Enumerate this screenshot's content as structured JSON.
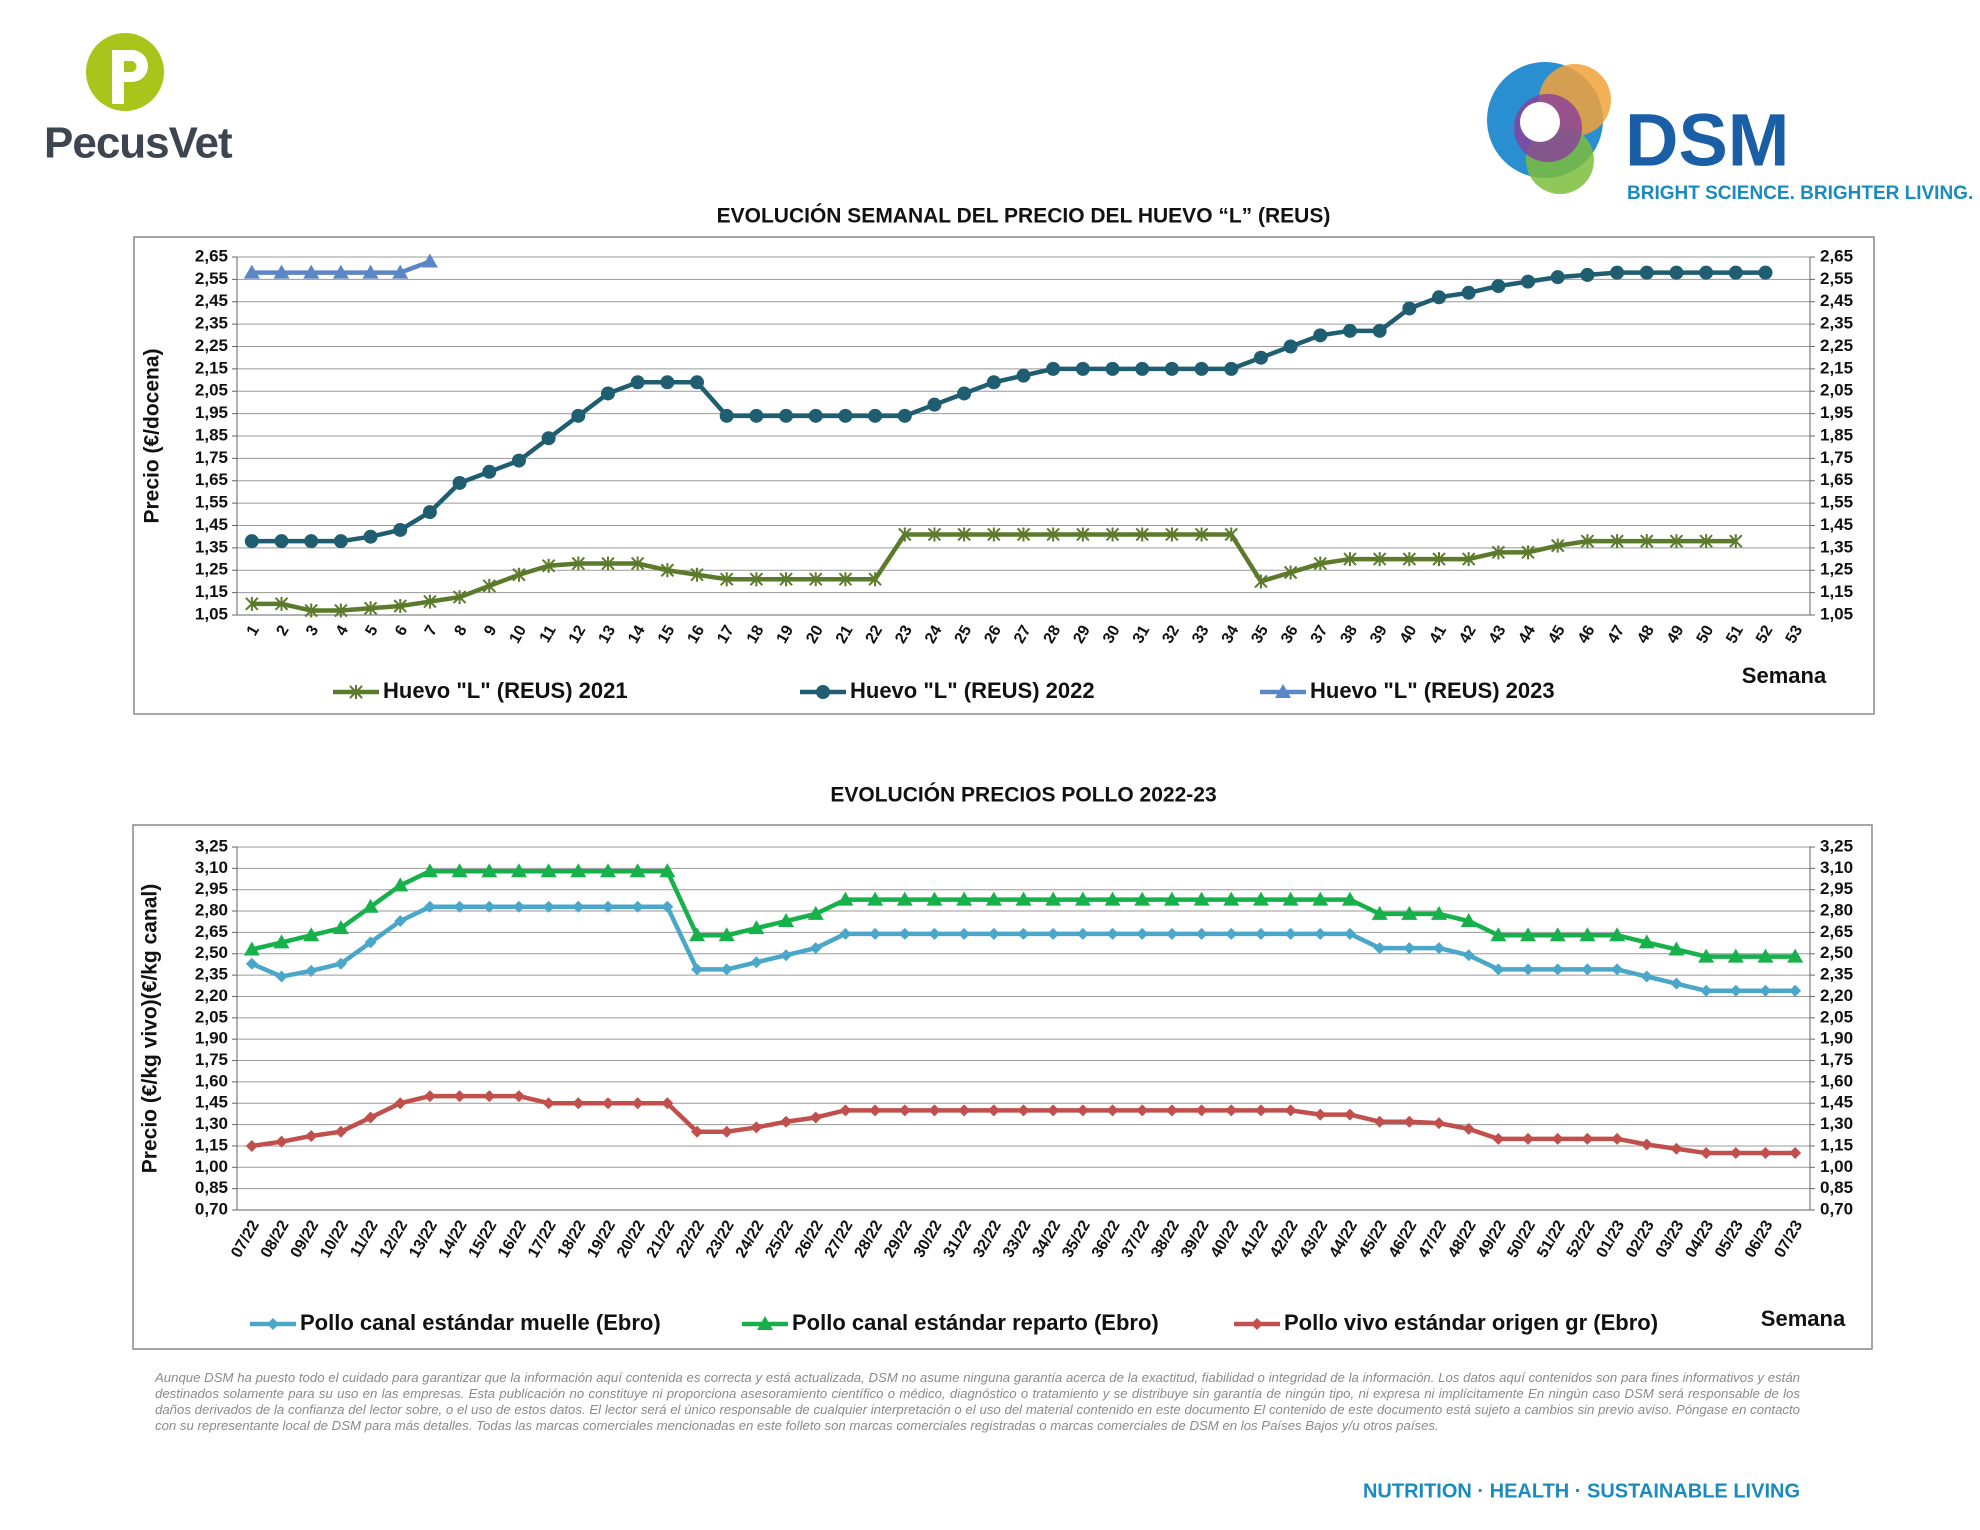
{
  "header": {
    "brand_left": "PecusVet",
    "brand_right": "DSM",
    "tagline": "BRIGHT SCIENCE. BRIGHTER LIVING."
  },
  "chart_data": [
    {
      "type": "line",
      "title": "EVOLUCIÓN SEMANAL DEL PRECIO DEL HUEVO “L” (REUS)",
      "y_label": "Precio (€/docena)",
      "x_label": "Semana",
      "categories": [
        "1",
        "2",
        "3",
        "4",
        "5",
        "6",
        "7",
        "8",
        "9",
        "10",
        "11",
        "12",
        "13",
        "14",
        "15",
        "16",
        "17",
        "18",
        "19",
        "20",
        "21",
        "22",
        "23",
        "24",
        "25",
        "26",
        "27",
        "28",
        "29",
        "30",
        "31",
        "32",
        "33",
        "34",
        "35",
        "36",
        "37",
        "38",
        "39",
        "40",
        "41",
        "42",
        "43",
        "44",
        "45",
        "46",
        "47",
        "48",
        "49",
        "50",
        "51",
        "52",
        "53"
      ],
      "series": [
        {
          "name": "Huevo \"L\" (REUS) 2021",
          "color": "#5b7a2b",
          "marker": "x",
          "values": [
            1.1,
            1.1,
            1.07,
            1.07,
            1.08,
            1.09,
            1.11,
            1.13,
            1.18,
            1.23,
            1.27,
            1.28,
            1.28,
            1.28,
            1.25,
            1.23,
            1.21,
            1.21,
            1.21,
            1.21,
            1.21,
            1.21,
            1.41,
            1.41,
            1.41,
            1.41,
            1.41,
            1.41,
            1.41,
            1.41,
            1.41,
            1.41,
            1.41,
            1.41,
            1.2,
            1.24,
            1.28,
            1.3,
            1.3,
            1.3,
            1.3,
            1.3,
            1.33,
            1.33,
            1.36,
            1.38,
            1.38,
            1.38,
            1.38,
            1.38,
            1.38,
            null,
            null
          ]
        },
        {
          "name": "Huevo \"L\" (REUS) 2022",
          "color": "#1f5d70",
          "marker": "circle",
          "values": [
            1.38,
            1.38,
            1.38,
            1.38,
            1.4,
            1.43,
            1.51,
            1.64,
            1.69,
            1.74,
            1.84,
            1.94,
            2.04,
            2.09,
            2.09,
            2.09,
            1.94,
            1.94,
            1.94,
            1.94,
            1.94,
            1.94,
            1.94,
            1.99,
            2.04,
            2.09,
            2.12,
            2.15,
            2.15,
            2.15,
            2.15,
            2.15,
            2.15,
            2.15,
            2.2,
            2.25,
            2.3,
            2.32,
            2.32,
            2.42,
            2.47,
            2.49,
            2.52,
            2.54,
            2.56,
            2.57,
            2.58,
            2.58,
            2.58,
            2.58,
            2.58,
            2.58,
            null
          ]
        },
        {
          "name": "Huevo \"L\" (REUS) 2023",
          "color": "#5b87c6",
          "marker": "triangle",
          "values": [
            2.58,
            2.58,
            2.58,
            2.58,
            2.58,
            2.58,
            2.63,
            null,
            null,
            null,
            null,
            null,
            null,
            null,
            null,
            null,
            null,
            null,
            null,
            null,
            null,
            null,
            null,
            null,
            null,
            null,
            null,
            null,
            null,
            null,
            null,
            null,
            null,
            null,
            null,
            null,
            null,
            null,
            null,
            null,
            null,
            null,
            null,
            null,
            null,
            null,
            null,
            null,
            null,
            null,
            null,
            null,
            null
          ]
        }
      ],
      "ylim": [
        1.05,
        2.65
      ],
      "yticks": [
        {
          "value": 1.05,
          "label": "1,05"
        },
        {
          "value": 1.15,
          "label": "1,15"
        },
        {
          "value": 1.25,
          "label": "1,25"
        },
        {
          "value": 1.35,
          "label": "1,35"
        },
        {
          "value": 1.45,
          "label": "1,45"
        },
        {
          "value": 1.55,
          "label": "1,55"
        },
        {
          "value": 1.65,
          "label": "1,65"
        },
        {
          "value": 1.75,
          "label": "1,75"
        },
        {
          "value": 1.85,
          "label": "1,85"
        },
        {
          "value": 1.95,
          "label": "1,95"
        },
        {
          "value": 2.05,
          "label": "2,05"
        },
        {
          "value": 2.15,
          "label": "2,15"
        },
        {
          "value": 2.25,
          "label": "2,25"
        },
        {
          "value": 2.35,
          "label": "2,35"
        },
        {
          "value": 2.45,
          "label": "2,45"
        },
        {
          "value": 2.55,
          "label": "2,55"
        },
        {
          "value": 2.65,
          "label": "2,65"
        }
      ],
      "y2lim": [
        1.05,
        2.65
      ],
      "y2ticks": [
        {
          "value": 1.05,
          "label": "1,05"
        },
        {
          "value": 1.15,
          "label": "1,15"
        },
        {
          "value": 1.25,
          "label": "1,25"
        },
        {
          "value": 1.35,
          "label": "1,35"
        },
        {
          "value": 1.45,
          "label": "1,45"
        },
        {
          "value": 1.55,
          "label": "1,55"
        },
        {
          "value": 1.65,
          "label": "1,65"
        },
        {
          "value": 1.75,
          "label": "1,75"
        },
        {
          "value": 1.85,
          "label": "1,85"
        },
        {
          "value": 1.95,
          "label": "1,95"
        },
        {
          "value": 2.05,
          "label": "2,05"
        },
        {
          "value": 2.15,
          "label": "2,15"
        },
        {
          "value": 2.25,
          "label": "2,25"
        },
        {
          "value": 2.35,
          "label": "2,35"
        },
        {
          "value": 2.45,
          "label": "2,45"
        },
        {
          "value": 2.55,
          "label": "2,55"
        },
        {
          "value": 2.65,
          "label": "2,65"
        }
      ],
      "grid": true,
      "legend": "bottom"
    },
    {
      "type": "line",
      "title": "EVOLUCIÓN PRECIOS POLLO 2022-23",
      "y_label": "Precio (€/kg vivo)(€/kg canal)",
      "x_label": "Semana",
      "categories": [
        "07/22",
        "08/22",
        "09/22",
        "10/22",
        "11/22",
        "12/22",
        "13/22",
        "14/22",
        "15/22",
        "16/22",
        "17/22",
        "18/22",
        "19/22",
        "20/22",
        "21/22",
        "22/22",
        "23/22",
        "24/22",
        "25/22",
        "26/22",
        "27/22",
        "28/22",
        "29/22",
        "30/22",
        "31/22",
        "32/22",
        "33/22",
        "34/22",
        "35/22",
        "36/22",
        "37/22",
        "38/22",
        "39/22",
        "40/22",
        "41/22",
        "42/22",
        "43/22",
        "44/22",
        "45/22",
        "46/22",
        "47/22",
        "48/22",
        "49/22",
        "50/22",
        "51/22",
        "52/22",
        "01/23",
        "02/23",
        "03/23",
        "04/23",
        "05/23",
        "06/23",
        "07/23"
      ],
      "series": [
        {
          "name": "Pollo canal estándar muelle (Ebro)",
          "color": "#4aa7c9",
          "marker": "diamond",
          "values": [
            2.43,
            2.34,
            2.38,
            2.43,
            2.58,
            2.73,
            2.83,
            2.83,
            2.83,
            2.83,
            2.83,
            2.83,
            2.83,
            2.83,
            2.83,
            2.39,
            2.39,
            2.44,
            2.49,
            2.54,
            2.64,
            2.64,
            2.64,
            2.64,
            2.64,
            2.64,
            2.64,
            2.64,
            2.64,
            2.64,
            2.64,
            2.64,
            2.64,
            2.64,
            2.64,
            2.64,
            2.64,
            2.64,
            2.54,
            2.54,
            2.54,
            2.49,
            2.39,
            2.39,
            2.39,
            2.39,
            2.39,
            2.34,
            2.29,
            2.24,
            2.24,
            2.24,
            2.24
          ]
        },
        {
          "name": "Pollo canal estándar reparto (Ebro)",
          "color": "#17b14b",
          "marker": "triangle",
          "values": [
            2.53,
            2.58,
            2.63,
            2.68,
            2.83,
            2.98,
            3.08,
            3.08,
            3.08,
            3.08,
            3.08,
            3.08,
            3.08,
            3.08,
            3.08,
            2.63,
            2.63,
            2.68,
            2.73,
            2.78,
            2.88,
            2.88,
            2.88,
            2.88,
            2.88,
            2.88,
            2.88,
            2.88,
            2.88,
            2.88,
            2.88,
            2.88,
            2.88,
            2.88,
            2.88,
            2.88,
            2.88,
            2.88,
            2.78,
            2.78,
            2.78,
            2.73,
            2.63,
            2.63,
            2.63,
            2.63,
            2.63,
            2.58,
            2.53,
            2.48,
            2.48,
            2.48,
            2.48
          ]
        },
        {
          "name": "Pollo vivo estándar origen gr (Ebro)",
          "color": "#c1504d",
          "marker": "diamond",
          "values": [
            1.15,
            1.18,
            1.22,
            1.25,
            1.35,
            1.45,
            1.5,
            1.5,
            1.5,
            1.5,
            1.45,
            1.45,
            1.45,
            1.45,
            1.45,
            1.25,
            1.25,
            1.28,
            1.32,
            1.35,
            1.4,
            1.4,
            1.4,
            1.4,
            1.4,
            1.4,
            1.4,
            1.4,
            1.4,
            1.4,
            1.4,
            1.4,
            1.4,
            1.4,
            1.4,
            1.4,
            1.37,
            1.37,
            1.32,
            1.32,
            1.31,
            1.27,
            1.2,
            1.2,
            1.2,
            1.2,
            1.2,
            1.16,
            1.13,
            1.1,
            1.1,
            1.1,
            1.1
          ]
        }
      ],
      "ylim": [
        0.7,
        3.25
      ],
      "yticks": [
        {
          "value": 0.7,
          "label": "0,70"
        },
        {
          "value": 0.85,
          "label": "0,85"
        },
        {
          "value": 1.0,
          "label": "1,00"
        },
        {
          "value": 1.15,
          "label": "1,15"
        },
        {
          "value": 1.3,
          "label": "1,30"
        },
        {
          "value": 1.45,
          "label": "1,45"
        },
        {
          "value": 1.6,
          "label": "1,60"
        },
        {
          "value": 1.75,
          "label": "1,75"
        },
        {
          "value": 1.9,
          "label": "1,90"
        },
        {
          "value": 2.05,
          "label": "2,05"
        },
        {
          "value": 2.2,
          "label": "2,20"
        },
        {
          "value": 2.35,
          "label": "2,35"
        },
        {
          "value": 2.5,
          "label": "2,50"
        },
        {
          "value": 2.65,
          "label": "2,65"
        },
        {
          "value": 2.8,
          "label": "2,80"
        },
        {
          "value": 2.95,
          "label": "2,95"
        },
        {
          "value": 3.1,
          "label": "3,10"
        },
        {
          "value": 3.25,
          "label": "3,25"
        }
      ],
      "y2lim": [
        0.7,
        3.25
      ],
      "y2ticks": [
        {
          "value": 0.7,
          "label": "0,70"
        },
        {
          "value": 0.85,
          "label": "0,85"
        },
        {
          "value": 1.0,
          "label": "1,00"
        },
        {
          "value": 1.15,
          "label": "1,15"
        },
        {
          "value": 1.3,
          "label": "1,30"
        },
        {
          "value": 1.45,
          "label": "1,45"
        },
        {
          "value": 1.6,
          "label": "1,60"
        },
        {
          "value": 1.75,
          "label": "1,75"
        },
        {
          "value": 1.9,
          "label": "1,90"
        },
        {
          "value": 2.05,
          "label": "2,05"
        },
        {
          "value": 2.2,
          "label": "2,20"
        },
        {
          "value": 2.35,
          "label": "2,35"
        },
        {
          "value": 2.5,
          "label": "2,50"
        },
        {
          "value": 2.65,
          "label": "2,65"
        },
        {
          "value": 2.8,
          "label": "2,80"
        },
        {
          "value": 2.95,
          "label": "2,95"
        },
        {
          "value": 3.1,
          "label": "3,10"
        },
        {
          "value": 3.25,
          "label": "3,25"
        }
      ],
      "grid": true,
      "legend": "bottom"
    }
  ],
  "disclaimer": "Aunque DSM ha puesto todo el cuidado para garantizar que la información aquí contenida es correcta y está actualizada, DSM no asume ninguna garantía acerca de la exactitud, fiabilidad o integridad de la información. Los datos aquí contenidos son para fines informativos y están destinados solamente para su uso en las empresas. Esta publicación no constituye ni proporciona asesoramiento científico o médico, diagnóstico o tratamiento y se distribuye sin garantía de ningún tipo, ni expresa ni implícitamente En ningún caso DSM será responsable de los daños derivados de la confianza del lector sobre, o el uso de estos datos. El lector será el único responsable de cualquier interpretación o el uso del material contenido en este documento El contenido de este documento está sujeto a cambios sin previo aviso. Póngase en contacto con su representante local de DSM para más detalles. Todas las marcas comerciales mencionadas en este folleto son marcas comerciales registradas o marcas comerciales de DSM en los Países Bajos y/u otros países.",
  "footer": "NUTRITION · HEALTH · SUSTAINABLE LIVING"
}
